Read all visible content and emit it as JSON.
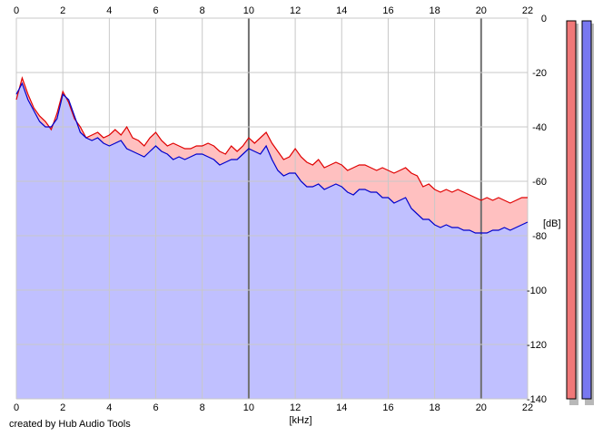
{
  "credit": "created by Hub Audio Tools",
  "colors": {
    "plot_bg": "#ffffff",
    "grid": "#c8c8c8",
    "grid_major": "#707070",
    "left_line": "#e00000",
    "left_fill": "#ffc0c0",
    "right_line": "#0000cc",
    "right_fill": "#c0c0ff",
    "meter_left": "#f07878",
    "meter_right": "#7878f0",
    "meter_shadow": "#b8b8b8"
  },
  "chart_data": {
    "type": "area",
    "title": "",
    "xlabel": "[kHz]",
    "ylabel": "[dB]",
    "xlim": [
      0,
      22
    ],
    "ylim": [
      -140,
      0
    ],
    "x_ticks": [
      0,
      2,
      4,
      6,
      8,
      10,
      12,
      14,
      16,
      18,
      20,
      22
    ],
    "x_tick_labels": [
      "0",
      "2",
      "4",
      "6",
      "8",
      "10",
      "12",
      "14",
      "16",
      "18",
      "20",
      "22"
    ],
    "y_ticks": [
      0,
      -20,
      -40,
      -60,
      -80,
      -100,
      -120,
      -140
    ],
    "y_tick_labels": [
      "0",
      "-20",
      "-40",
      "-60",
      "-80",
      "-100",
      "-120",
      "-140"
    ],
    "grid": true,
    "x_tick_positions": "top and bottom",
    "y_tick_positions": "right",
    "series": [
      {
        "color": "#e00000",
        "fill": "#ffc0c0",
        "x": [
          0.0,
          0.25,
          0.5,
          0.75,
          1.0,
          1.25,
          1.5,
          1.75,
          2.0,
          2.25,
          2.5,
          2.75,
          3.0,
          3.25,
          3.5,
          3.75,
          4.0,
          4.25,
          4.5,
          4.75,
          5.0,
          5.25,
          5.5,
          5.75,
          6.0,
          6.25,
          6.5,
          6.75,
          7.0,
          7.25,
          7.5,
          7.75,
          8.0,
          8.25,
          8.5,
          8.75,
          9.0,
          9.25,
          9.5,
          9.75,
          10.0,
          10.25,
          10.5,
          10.75,
          11.0,
          11.25,
          11.5,
          11.75,
          12.0,
          12.25,
          12.5,
          12.75,
          13.0,
          13.25,
          13.5,
          13.75,
          14.0,
          14.25,
          14.5,
          14.75,
          15.0,
          15.25,
          15.5,
          15.75,
          16.0,
          16.25,
          16.5,
          16.75,
          17.0,
          17.25,
          17.5,
          17.75,
          18.0,
          18.25,
          18.5,
          18.75,
          19.0,
          19.25,
          19.5,
          19.75,
          20.0,
          20.25,
          20.5,
          20.75,
          21.0,
          21.25,
          21.5,
          21.75,
          22.0
        ],
        "values": [
          -30,
          -22,
          -28,
          -33,
          -36,
          -38,
          -41,
          -35,
          -27,
          -31,
          -37,
          -40,
          -44,
          -43,
          -42,
          -44,
          -43,
          -41,
          -43,
          -40,
          -44,
          -45,
          -47,
          -44,
          -42,
          -45,
          -47,
          -46,
          -47,
          -48,
          -48,
          -47,
          -47,
          -46,
          -47,
          -49,
          -50,
          -47,
          -49,
          -47,
          -44,
          -46,
          -44,
          -42,
          -46,
          -49,
          -52,
          -51,
          -48,
          -51,
          -53,
          -54,
          -52,
          -55,
          -54,
          -53,
          -54,
          -56,
          -55,
          -54,
          -54,
          -55,
          -56,
          -55,
          -56,
          -57,
          -56,
          -55,
          -57,
          -58,
          -62,
          -61,
          -63,
          -64,
          -63,
          -64,
          -63,
          -64,
          -65,
          -66,
          -67,
          -66,
          -67,
          -66,
          -67,
          -68,
          -67,
          -66,
          -66
        ]
      },
      {
        "color": "#0000cc",
        "fill": "#c0c0ff",
        "x": [
          0.0,
          0.25,
          0.5,
          0.75,
          1.0,
          1.25,
          1.5,
          1.75,
          2.0,
          2.25,
          2.5,
          2.75,
          3.0,
          3.25,
          3.5,
          3.75,
          4.0,
          4.25,
          4.5,
          4.75,
          5.0,
          5.25,
          5.5,
          5.75,
          6.0,
          6.25,
          6.5,
          6.75,
          7.0,
          7.25,
          7.5,
          7.75,
          8.0,
          8.25,
          8.5,
          8.75,
          9.0,
          9.25,
          9.5,
          9.75,
          10.0,
          10.25,
          10.5,
          10.75,
          11.0,
          11.25,
          11.5,
          11.75,
          12.0,
          12.25,
          12.5,
          12.75,
          13.0,
          13.25,
          13.5,
          13.75,
          14.0,
          14.25,
          14.5,
          14.75,
          15.0,
          15.25,
          15.5,
          15.75,
          16.0,
          16.25,
          16.5,
          16.75,
          17.0,
          17.25,
          17.5,
          17.75,
          18.0,
          18.25,
          18.5,
          18.75,
          19.0,
          19.25,
          19.5,
          19.75,
          20.0,
          20.25,
          20.5,
          20.75,
          21.0,
          21.25,
          21.5,
          21.75,
          22.0
        ],
        "values": [
          -28,
          -24,
          -30,
          -34,
          -38,
          -40,
          -40,
          -37,
          -28,
          -30,
          -36,
          -42,
          -44,
          -45,
          -44,
          -46,
          -47,
          -46,
          -45,
          -48,
          -49,
          -50,
          -51,
          -49,
          -47,
          -49,
          -50,
          -52,
          -51,
          -52,
          -51,
          -50,
          -50,
          -51,
          -52,
          -54,
          -53,
          -52,
          -52,
          -50,
          -48,
          -49,
          -50,
          -47,
          -52,
          -56,
          -58,
          -57,
          -57,
          -60,
          -62,
          -62,
          -61,
          -63,
          -62,
          -61,
          -62,
          -64,
          -65,
          -63,
          -63,
          -64,
          -64,
          -66,
          -66,
          -68,
          -67,
          -66,
          -70,
          -72,
          -74,
          -74,
          -76,
          -77,
          -76,
          -77,
          -77,
          -78,
          -78,
          -79,
          -79,
          -79,
          -78,
          -78,
          -77,
          -78,
          -77,
          -76,
          -75
        ]
      }
    ],
    "level_meters": [
      {
        "value_db": -1
      },
      {
        "value_db": -1
      }
    ]
  }
}
